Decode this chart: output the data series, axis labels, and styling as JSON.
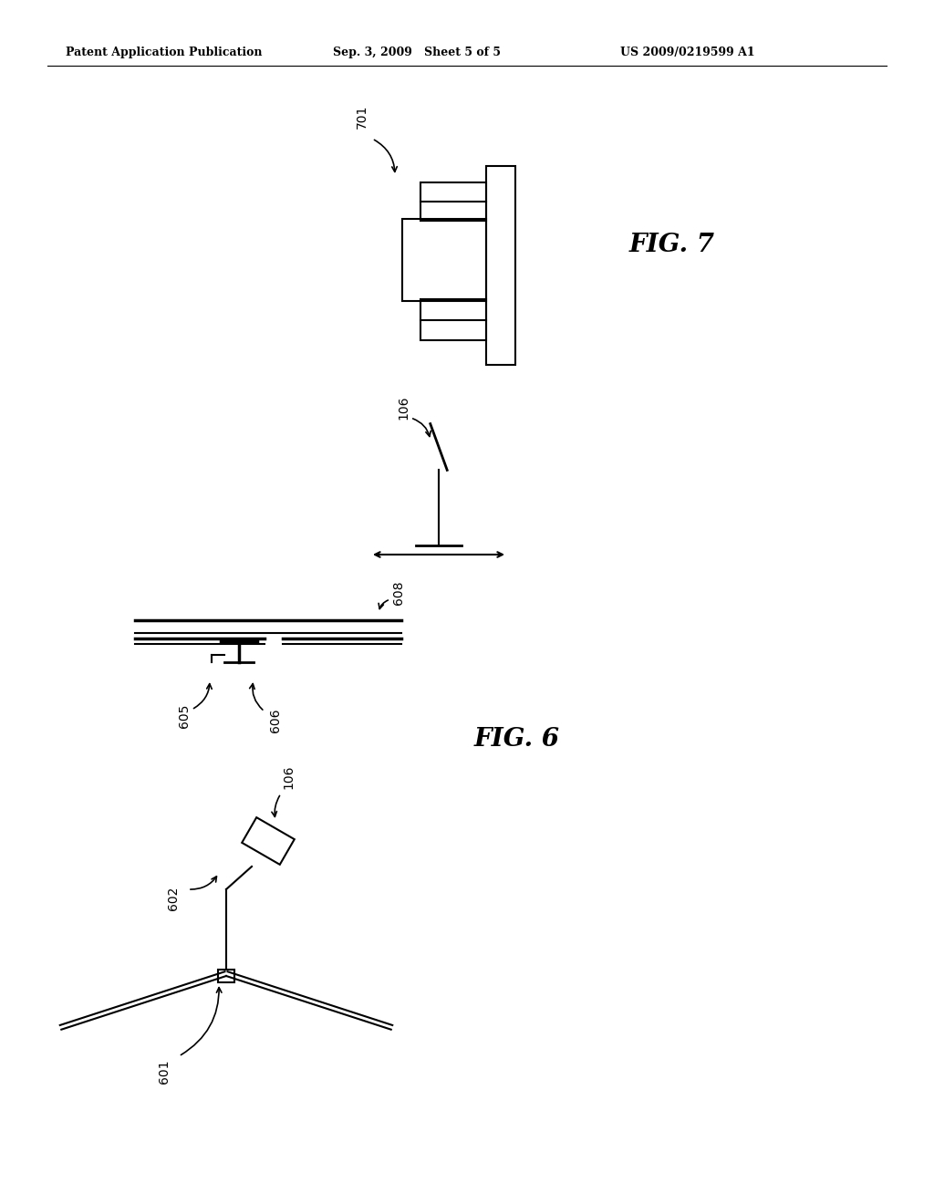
{
  "background_color": "#ffffff",
  "header_left": "Patent Application Publication",
  "header_mid": "Sep. 3, 2009   Sheet 5 of 5",
  "header_right": "US 2009/0219599 A1",
  "fig7_label": "FIG. 7",
  "fig6_label": "FIG. 6",
  "label_701": "701",
  "label_106_mid": "106",
  "label_106_bot": "106",
  "label_602": "602",
  "label_601": "601",
  "label_605": "605",
  "label_606": "606",
  "label_608": "608"
}
